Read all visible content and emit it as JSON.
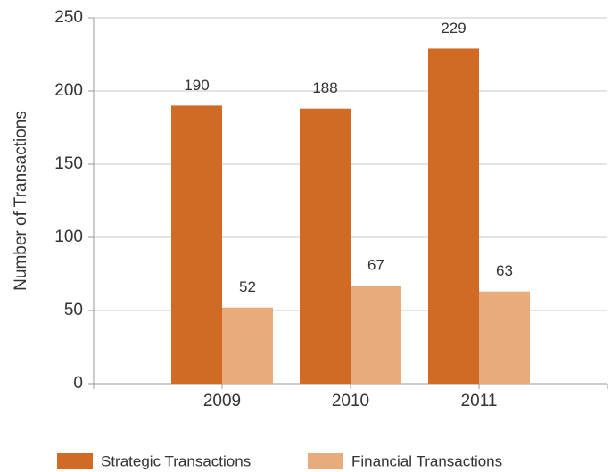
{
  "chart_data": {
    "type": "bar",
    "y_label": "Number of Transactions",
    "categories": [
      "2009",
      "2010",
      "2011"
    ],
    "series": [
      {
        "name": "Strategic Transactions",
        "color": "#d06a25",
        "values": [
          190,
          188,
          229
        ]
      },
      {
        "name": "Financial Transactions",
        "color": "#e8ac7c",
        "values": [
          52,
          67,
          63
        ]
      }
    ],
    "ylim": [
      0,
      250
    ],
    "yticks": [
      0,
      50,
      100,
      150,
      200,
      250
    ],
    "grid": true,
    "legend": "bottom"
  }
}
